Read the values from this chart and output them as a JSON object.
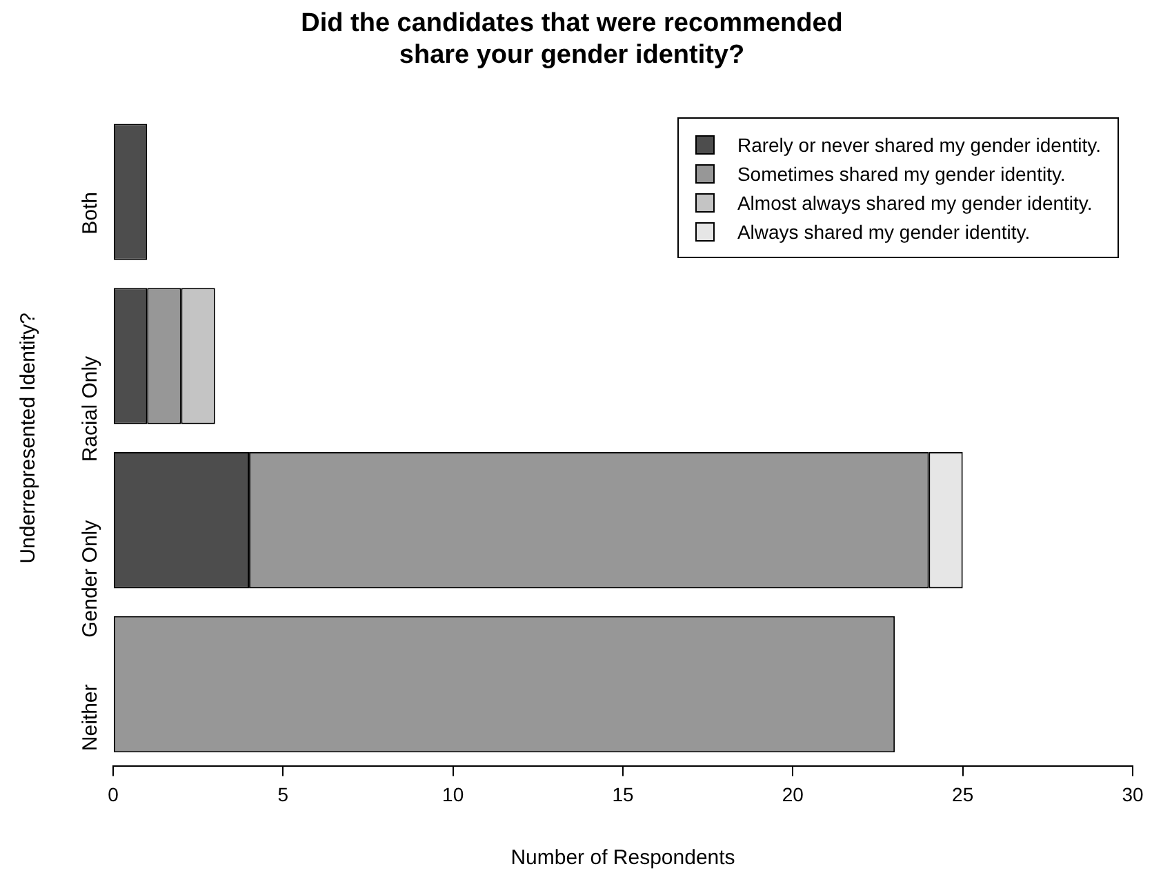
{
  "chart_data": {
    "type": "bar",
    "title": "Did the candidates that were recommended share your gender identity?",
    "xlabel": "Number of Respondents",
    "ylabel": "Underrepresented Identity?",
    "categories": [
      "Both",
      "Racial Only",
      "Gender Only",
      "Neither"
    ],
    "orientation": "horizontal",
    "stacked": true,
    "series": [
      {
        "name": "Rarely or never shared my gender identity.",
        "color": "#4d4d4d",
        "values": [
          1,
          1,
          4,
          0
        ]
      },
      {
        "name": "Sometimes shared my gender identity.",
        "color": "#979797",
        "values": [
          0,
          1,
          20,
          23
        ]
      },
      {
        "name": "Almost always shared my gender identity.",
        "color": "#c4c4c4",
        "values": [
          0,
          1,
          0,
          0
        ]
      },
      {
        "name": "Always shared my gender identity.",
        "color": "#e6e6e6",
        "values": [
          0,
          0,
          1,
          0
        ]
      }
    ],
    "xlim": [
      0,
      30
    ],
    "xticks": [
      0,
      5,
      10,
      15,
      20,
      25,
      30
    ],
    "grid": false,
    "legend": "top right"
  }
}
